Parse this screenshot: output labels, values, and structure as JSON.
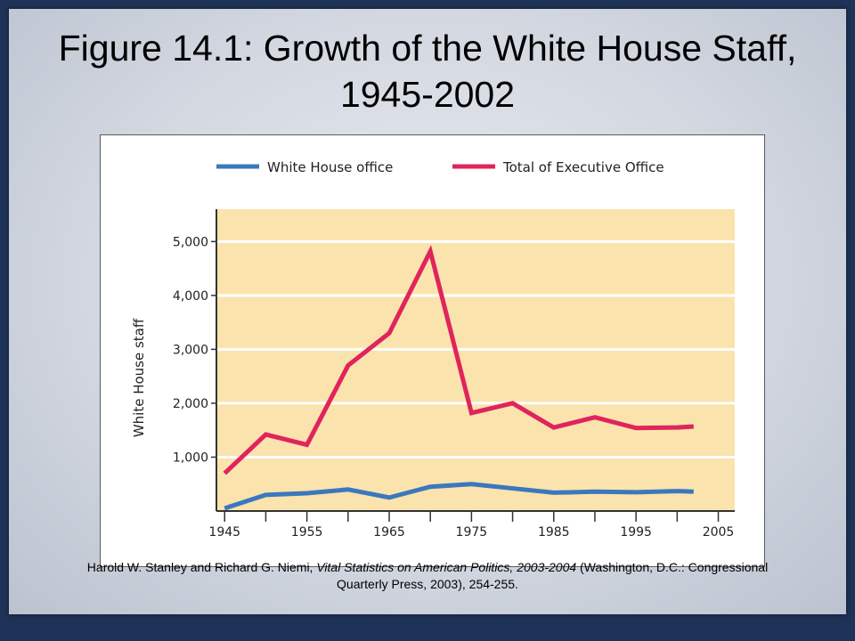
{
  "slide": {
    "title": "Figure 14.1: Growth of the White House Staff, 1945-2002"
  },
  "source": {
    "author": "Harold W. Stanley and Richard G. Niemi, ",
    "work": "Vital Statistics on American Politics, 2003-2004",
    "publication": " (Washington, D.C.: Congressional Quarterly Press, 2003), 254-255."
  },
  "colors": {
    "plot_background": "#fbe3ad",
    "white_house_line": "#3a78be",
    "executive_line": "#e0245c",
    "slide_border": "#1f3358"
  },
  "chart_data": {
    "type": "line",
    "ylabel": "White House staff",
    "xlabel": "",
    "xlim": [
      1944,
      2007
    ],
    "ylim": [
      0,
      5600
    ],
    "x_ticks": [
      1945,
      1955,
      1965,
      1975,
      1985,
      1995,
      2005
    ],
    "y_ticks": [
      1000,
      2000,
      3000,
      4000,
      5000
    ],
    "y_tick_labels": [
      "1,000",
      "2,000",
      "3,000",
      "4,000",
      "5,000"
    ],
    "grid": "horizontal",
    "legend_position": "top",
    "series": [
      {
        "name": "White House office",
        "color": "#3a78be",
        "x": [
          1945,
          1950,
          1955,
          1960,
          1965,
          1970,
          1975,
          1980,
          1985,
          1990,
          1995,
          2000,
          2002
        ],
        "values": [
          50,
          300,
          330,
          400,
          250,
          450,
          500,
          420,
          340,
          360,
          350,
          370,
          360
        ]
      },
      {
        "name": "Total of Executive Office",
        "color": "#e0245c",
        "x": [
          1945,
          1950,
          1955,
          1960,
          1965,
          1970,
          1975,
          1980,
          1985,
          1990,
          1995,
          2000,
          2002
        ],
        "values": [
          700,
          1420,
          1230,
          2700,
          3300,
          4820,
          1820,
          2000,
          1550,
          1740,
          1540,
          1550,
          1570
        ]
      }
    ]
  }
}
